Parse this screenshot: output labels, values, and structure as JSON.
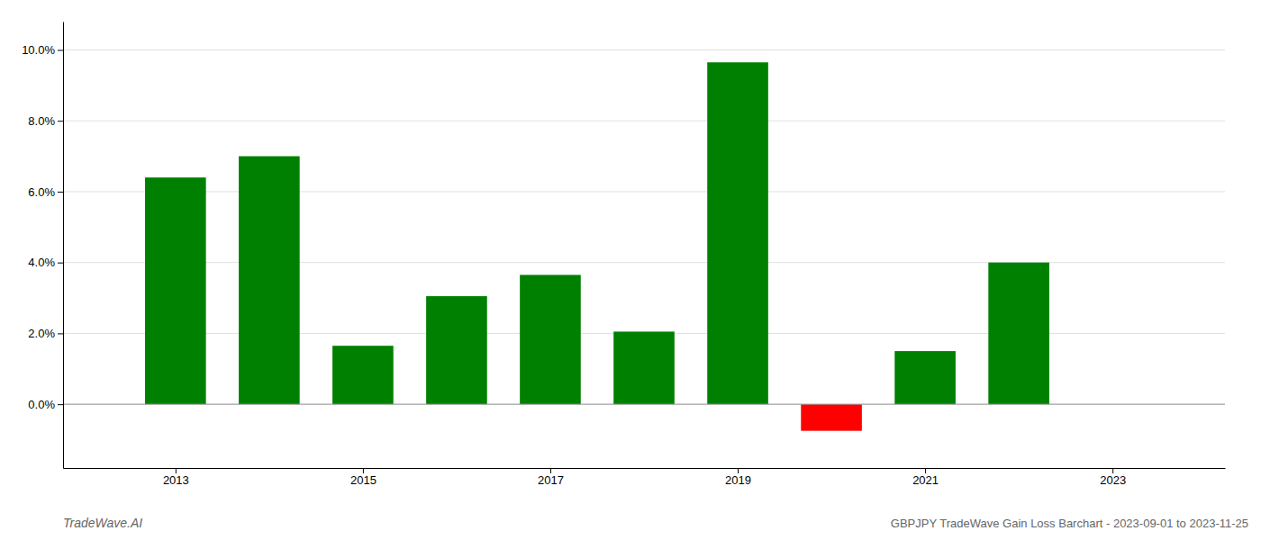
{
  "chart_data": {
    "type": "bar",
    "title": "GBPJPY TradeWave Gain Loss Barchart - 2023-09-01 to 2023-11-25",
    "annotations": [
      "TradeWave.AI"
    ],
    "x": [
      2013,
      2014,
      2015,
      2016,
      2017,
      2018,
      2019,
      2020,
      2021,
      2022
    ],
    "values": [
      0.064,
      0.07,
      0.0165,
      0.0305,
      0.0365,
      0.0205,
      0.0965,
      -0.0075,
      0.015,
      0.04
    ],
    "colors": [
      "#008000",
      "#008000",
      "#008000",
      "#008000",
      "#008000",
      "#008000",
      "#008000",
      "#ff0000",
      "#008000",
      "#008000"
    ],
    "xlim": [
      2011.8,
      2024.2
    ],
    "xticks": [
      2013,
      2015,
      2017,
      2019,
      2021,
      2023
    ],
    "ylim": [
      -0.018,
      0.108
    ],
    "yticks": [
      {
        "value": 0,
        "label": "0.0%"
      },
      {
        "value": 0.02,
        "label": "2.0%"
      },
      {
        "value": 0.04,
        "label": "4.0%"
      },
      {
        "value": 0.06,
        "label": "6.0%"
      },
      {
        "value": 0.08,
        "label": "8.0%"
      },
      {
        "value": 0.1,
        "label": "10.0%"
      }
    ],
    "grid": true
  }
}
